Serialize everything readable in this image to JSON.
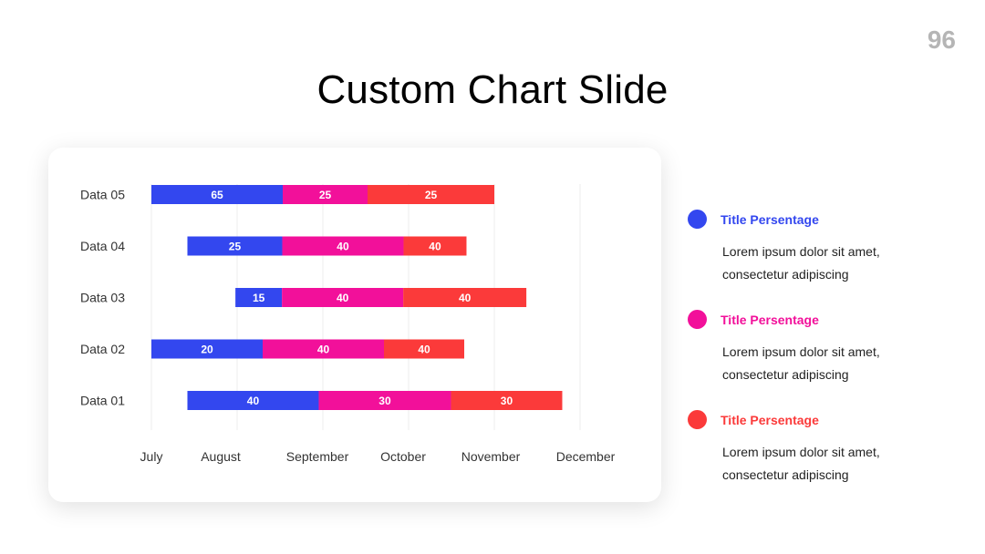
{
  "page_number": "96",
  "title": "Custom Chart Slide",
  "colors": {
    "blue": "#3347ef",
    "pink": "#f2109a",
    "red": "#fb3a3a",
    "grid": "#ececec"
  },
  "chart_data": {
    "type": "bar",
    "orientation": "horizontal",
    "stacked": true,
    "title": "",
    "x_tick_labels": [
      "July",
      "August",
      "September",
      "October",
      "November",
      "December"
    ],
    "categories": [
      "Data 05",
      "Data 04",
      "Data 03",
      "Data 02",
      "Data 01"
    ],
    "start_offsets": [
      0,
      0.42,
      0.98,
      0,
      0.42
    ],
    "series": [
      {
        "color": "blue",
        "values": [
          65,
          25,
          15,
          20,
          40
        ]
      },
      {
        "color": "pink",
        "values": [
          25,
          40,
          40,
          40,
          30
        ]
      },
      {
        "color": "red",
        "values": [
          25,
          40,
          40,
          40,
          30
        ]
      }
    ],
    "grid": true,
    "x_grid_lines": 6
  },
  "legend": [
    {
      "color": "blue",
      "title": "Title Persentage",
      "desc": "Lorem ipsum dolor sit amet, consectetur adipiscing"
    },
    {
      "color": "pink",
      "title": "Title Persentage",
      "desc": "Lorem ipsum dolor sit amet, consectetur adipiscing"
    },
    {
      "color": "red",
      "title": "Title Persentage",
      "desc": "Lorem ipsum dolor sit amet, consectetur adipiscing"
    }
  ]
}
